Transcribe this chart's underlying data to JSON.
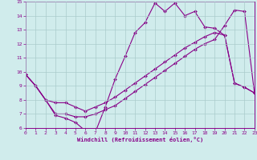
{
  "xlabel": "Windchill (Refroidissement éolien,°C)",
  "xlim": [
    0,
    23
  ],
  "ylim": [
    6,
    15
  ],
  "xticks": [
    0,
    1,
    2,
    3,
    4,
    5,
    6,
    7,
    8,
    9,
    10,
    11,
    12,
    13,
    14,
    15,
    16,
    17,
    18,
    19,
    20,
    21,
    22,
    23
  ],
  "yticks": [
    6,
    7,
    8,
    9,
    10,
    11,
    12,
    13,
    14,
    15
  ],
  "bg_color": "#d0ecec",
  "line_color": "#880088",
  "grid_color": "#aacccc",
  "line1_x": [
    0,
    1,
    2,
    3,
    4,
    5,
    6,
    7,
    8,
    9,
    10,
    11,
    12,
    13,
    14,
    15,
    16,
    17,
    18,
    19,
    20,
    21,
    22,
    23
  ],
  "line1_y": [
    9.8,
    9.0,
    8.0,
    6.9,
    6.7,
    6.4,
    5.8,
    5.7,
    7.5,
    9.5,
    11.1,
    12.8,
    13.5,
    14.9,
    14.3,
    14.9,
    14.0,
    14.3,
    13.2,
    13.1,
    12.6,
    9.2,
    8.9,
    8.5
  ],
  "line2_x": [
    0,
    1,
    2,
    3,
    4,
    5,
    6,
    7,
    8,
    9,
    10,
    11,
    12,
    13,
    14,
    15,
    16,
    17,
    18,
    19,
    20,
    21,
    22,
    23
  ],
  "line2_y": [
    9.8,
    9.0,
    8.0,
    7.8,
    7.8,
    7.5,
    7.2,
    7.5,
    7.8,
    8.2,
    8.7,
    9.2,
    9.7,
    10.2,
    10.7,
    11.2,
    11.7,
    12.1,
    12.5,
    12.8,
    12.6,
    9.2,
    8.9,
    8.5
  ],
  "line3_x": [
    0,
    1,
    2,
    3,
    4,
    5,
    6,
    7,
    8,
    9,
    10,
    11,
    12,
    13,
    14,
    15,
    16,
    17,
    18,
    19,
    20,
    21,
    22,
    23
  ],
  "line3_y": [
    9.8,
    9.0,
    8.0,
    7.0,
    7.0,
    6.8,
    6.8,
    7.0,
    7.3,
    7.6,
    8.1,
    8.6,
    9.1,
    9.6,
    10.1,
    10.6,
    11.1,
    11.6,
    12.0,
    12.3,
    13.3,
    14.4,
    14.3,
    8.5
  ]
}
